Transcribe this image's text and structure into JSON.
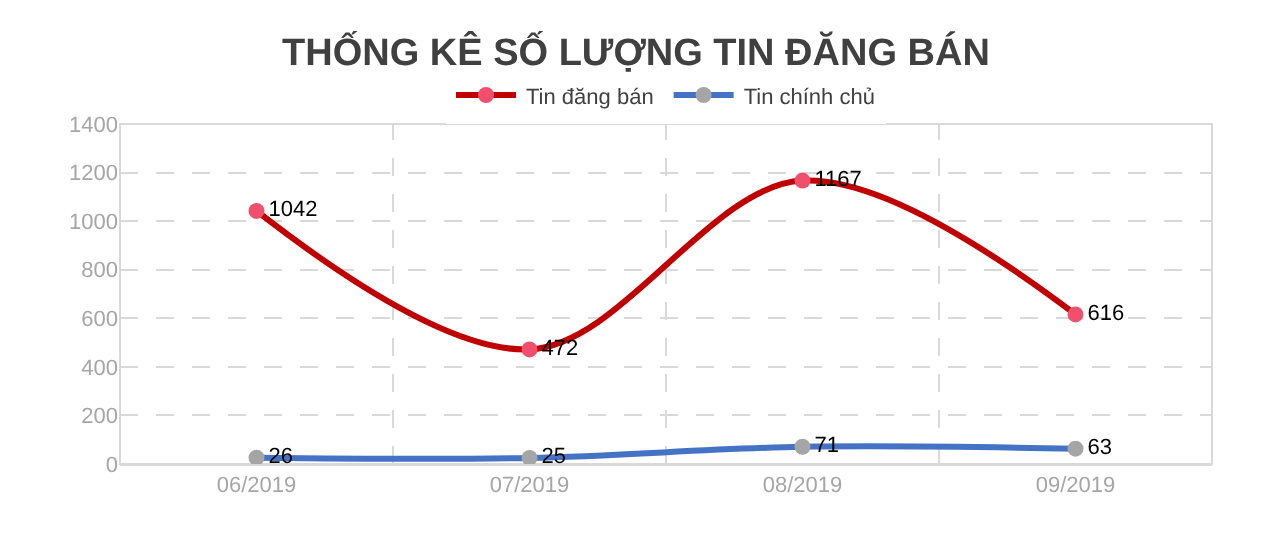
{
  "chart_data": {
    "type": "line",
    "title": "THỐNG KÊ SỐ LƯỢNG TIN ĐĂNG BÁN",
    "categories": [
      "06/2019",
      "07/2019",
      "08/2019",
      "09/2019"
    ],
    "series": [
      {
        "name": "Tin đăng bán",
        "color": "#c00000",
        "colors": [
          "#f0506e",
          "#f0506e",
          "#f0506e",
          "#f0506e"
        ],
        "values": [
          1042,
          472,
          1167,
          616
        ]
      },
      {
        "name": "Tin chính chủ",
        "color": "#4472c4",
        "colors": [
          "#a5a5a5",
          "#a5a5a5",
          "#a5a5a5",
          "#a5a5a5"
        ],
        "values": [
          26,
          25,
          71,
          63
        ]
      }
    ],
    "ylim": [
      0,
      1400
    ],
    "yticks": [
      0,
      200,
      400,
      600,
      800,
      1000,
      1200,
      1400
    ],
    "grid": true,
    "legend": "top",
    "marker": "circle",
    "line_style": "solid",
    "data_labels": true
  }
}
